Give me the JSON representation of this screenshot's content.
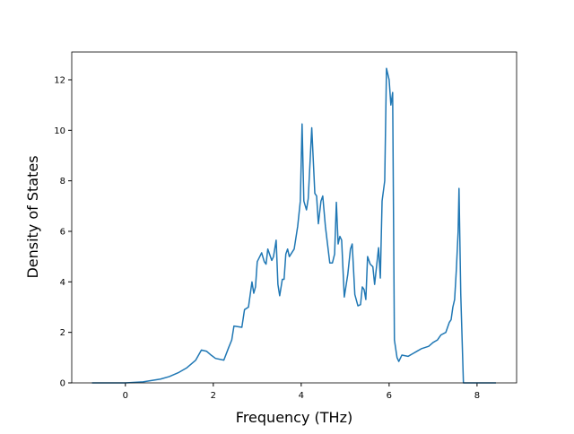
{
  "chart_data": {
    "type": "line",
    "xlabel": "Frequency (THz)",
    "ylabel": "Density of States",
    "xlim": [
      -1.22,
      8.9
    ],
    "ylim": [
      0,
      13.1
    ],
    "xticks": [
      0,
      2,
      4,
      6,
      8
    ],
    "yticks": [
      0,
      2,
      4,
      6,
      8,
      10,
      12
    ],
    "x": [
      -0.76,
      0,
      0.4,
      0.8,
      1.0,
      1.2,
      1.4,
      1.6,
      1.73,
      1.85,
      1.95,
      2.05,
      2.24,
      2.35,
      2.42,
      2.47,
      2.65,
      2.71,
      2.8,
      2.88,
      2.92,
      2.96,
      3.0,
      3.1,
      3.16,
      3.2,
      3.24,
      3.33,
      3.37,
      3.43,
      3.47,
      3.51,
      3.57,
      3.61,
      3.65,
      3.69,
      3.73,
      3.84,
      3.92,
      3.98,
      4.02,
      4.06,
      4.12,
      4.16,
      4.24,
      4.31,
      4.35,
      4.39,
      4.45,
      4.49,
      4.55,
      4.65,
      4.71,
      4.76,
      4.8,
      4.84,
      4.88,
      4.92,
      4.98,
      5.06,
      5.12,
      5.16,
      5.22,
      5.29,
      5.35,
      5.39,
      5.43,
      5.47,
      5.51,
      5.57,
      5.63,
      5.67,
      5.76,
      5.8,
      5.84,
      5.9,
      5.94,
      6.0,
      6.04,
      6.08,
      6.12,
      6.18,
      6.22,
      6.29,
      6.43,
      6.53,
      6.63,
      6.73,
      6.9,
      7.0,
      7.1,
      7.18,
      7.29,
      7.37,
      7.41,
      7.45,
      7.49,
      7.53,
      7.57,
      7.59,
      7.63,
      7.69,
      7.76,
      8.43
    ],
    "series": [
      {
        "color": "#1f77b4",
        "values": [
          0,
          0,
          0.04,
          0.15,
          0.25,
          0.4,
          0.6,
          0.9,
          1.3,
          1.25,
          1.1,
          0.97,
          0.9,
          1.4,
          1.7,
          2.25,
          2.2,
          2.9,
          3.0,
          4.0,
          3.55,
          3.8,
          4.8,
          5.15,
          4.8,
          4.7,
          5.3,
          4.85,
          5.0,
          5.65,
          3.9,
          3.45,
          4.1,
          4.1,
          5.1,
          5.3,
          5.0,
          5.3,
          6.2,
          7.2,
          10.25,
          7.2,
          6.85,
          7.3,
          10.1,
          7.5,
          7.4,
          6.3,
          7.2,
          7.4,
          6.2,
          4.75,
          4.75,
          5.1,
          7.15,
          5.5,
          5.8,
          5.65,
          3.4,
          4.3,
          5.3,
          5.5,
          3.5,
          3.05,
          3.1,
          3.8,
          3.7,
          3.3,
          5.0,
          4.7,
          4.6,
          3.9,
          5.35,
          4.15,
          7.2,
          8.0,
          12.45,
          12.0,
          11.0,
          11.5,
          1.7,
          1.0,
          0.85,
          1.1,
          1.05,
          1.15,
          1.25,
          1.35,
          1.45,
          1.6,
          1.7,
          1.9,
          2.0,
          2.4,
          2.5,
          3.0,
          3.3,
          4.5,
          6.0,
          7.7,
          3.5,
          0,
          0,
          0
        ]
      }
    ]
  }
}
